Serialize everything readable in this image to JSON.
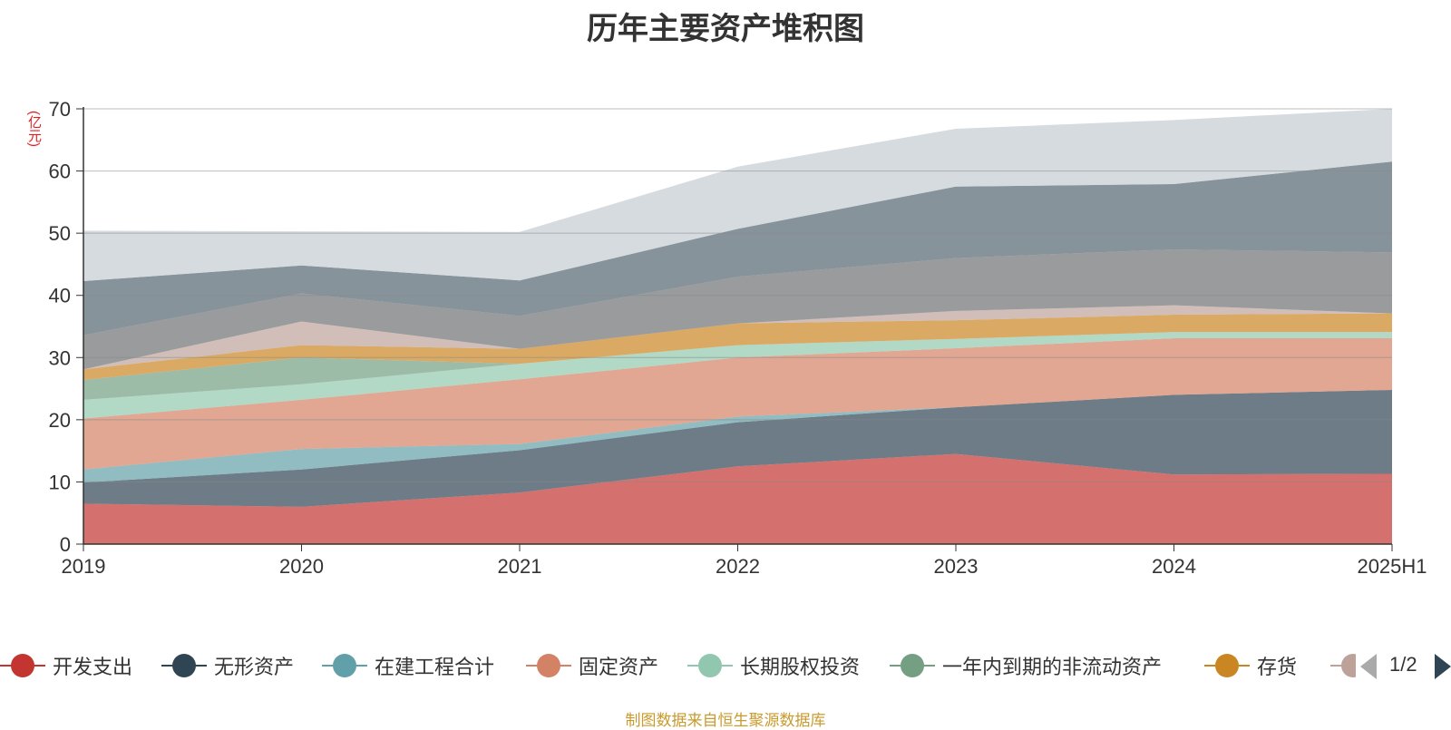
{
  "title": "历年主要资产堆积图",
  "y_unit": "(亿元)",
  "source": "制图数据来自恒生聚源数据库",
  "legend": {
    "items": [
      {
        "label": "开发支出",
        "color": "#c23531"
      },
      {
        "label": "无形资产",
        "color": "#2f4554"
      },
      {
        "label": "在建工程合计",
        "color": "#61a0a8"
      },
      {
        "label": "固定资产",
        "color": "#d48265"
      },
      {
        "label": "长期股权投资",
        "color": "#91c7ae"
      },
      {
        "label": "一年内到期的非流动资产",
        "color": "#749f83"
      },
      {
        "label": "存货",
        "color": "#ca8622"
      },
      {
        "label": "",
        "color": "#bda29a"
      }
    ],
    "page": "1/2"
  },
  "chart_data": {
    "type": "area",
    "stacked": true,
    "categories": [
      "2019",
      "2020",
      "2021",
      "2022",
      "2023",
      "2024",
      "2025H1"
    ],
    "ylim": [
      0,
      70
    ],
    "yticks": [
      0,
      10,
      20,
      30,
      40,
      50,
      60,
      70
    ],
    "grid": true,
    "series": [
      {
        "name": "开发支出",
        "color": "#c23531",
        "values": [
          6.5,
          6.0,
          8.3,
          12.5,
          14.5,
          11.2,
          11.3
        ]
      },
      {
        "name": "无形资产",
        "color": "#2f4554",
        "values": [
          3.4,
          6.0,
          6.8,
          7.1,
          7.5,
          12.8,
          13.5
        ]
      },
      {
        "name": "在建工程合计",
        "color": "#61a0a8",
        "values": [
          2.1,
          3.3,
          1.0,
          0.9,
          0.0,
          0.0,
          0.0
        ]
      },
      {
        "name": "固定资产",
        "color": "#d48265",
        "values": [
          8.2,
          7.9,
          10.4,
          9.5,
          9.5,
          9.1,
          8.3
        ]
      },
      {
        "name": "长期股权投资",
        "color": "#91c7ae",
        "values": [
          3.0,
          2.5,
          2.5,
          2.0,
          1.5,
          1.0,
          1.0
        ]
      },
      {
        "name": "一年内到期的非流动资产",
        "color": "#749f83",
        "values": [
          3.2,
          4.3,
          0.0,
          0.0,
          0.0,
          0.0,
          0.0
        ]
      },
      {
        "name": "存货",
        "color": "#ca8622",
        "values": [
          1.7,
          2.0,
          2.4,
          3.5,
          3.0,
          2.8,
          3.0
        ]
      },
      {
        "name": "",
        "color": "#bda29a",
        "values": [
          0.0,
          3.8,
          0.0,
          0.0,
          1.5,
          1.5,
          0.0
        ]
      },
      {
        "name": "",
        "color": "#6e7074",
        "values": [
          5.5,
          4.5,
          5.3,
          7.5,
          8.5,
          9.0,
          9.8
        ]
      },
      {
        "name": "",
        "color": "#546570",
        "values": [
          8.7,
          4.5,
          5.7,
          7.7,
          11.5,
          10.5,
          14.6
        ]
      },
      {
        "name": "",
        "color": "#c4ccd3",
        "values": [
          8.1,
          5.5,
          7.8,
          10.0,
          9.3,
          10.3,
          8.5
        ]
      }
    ]
  }
}
